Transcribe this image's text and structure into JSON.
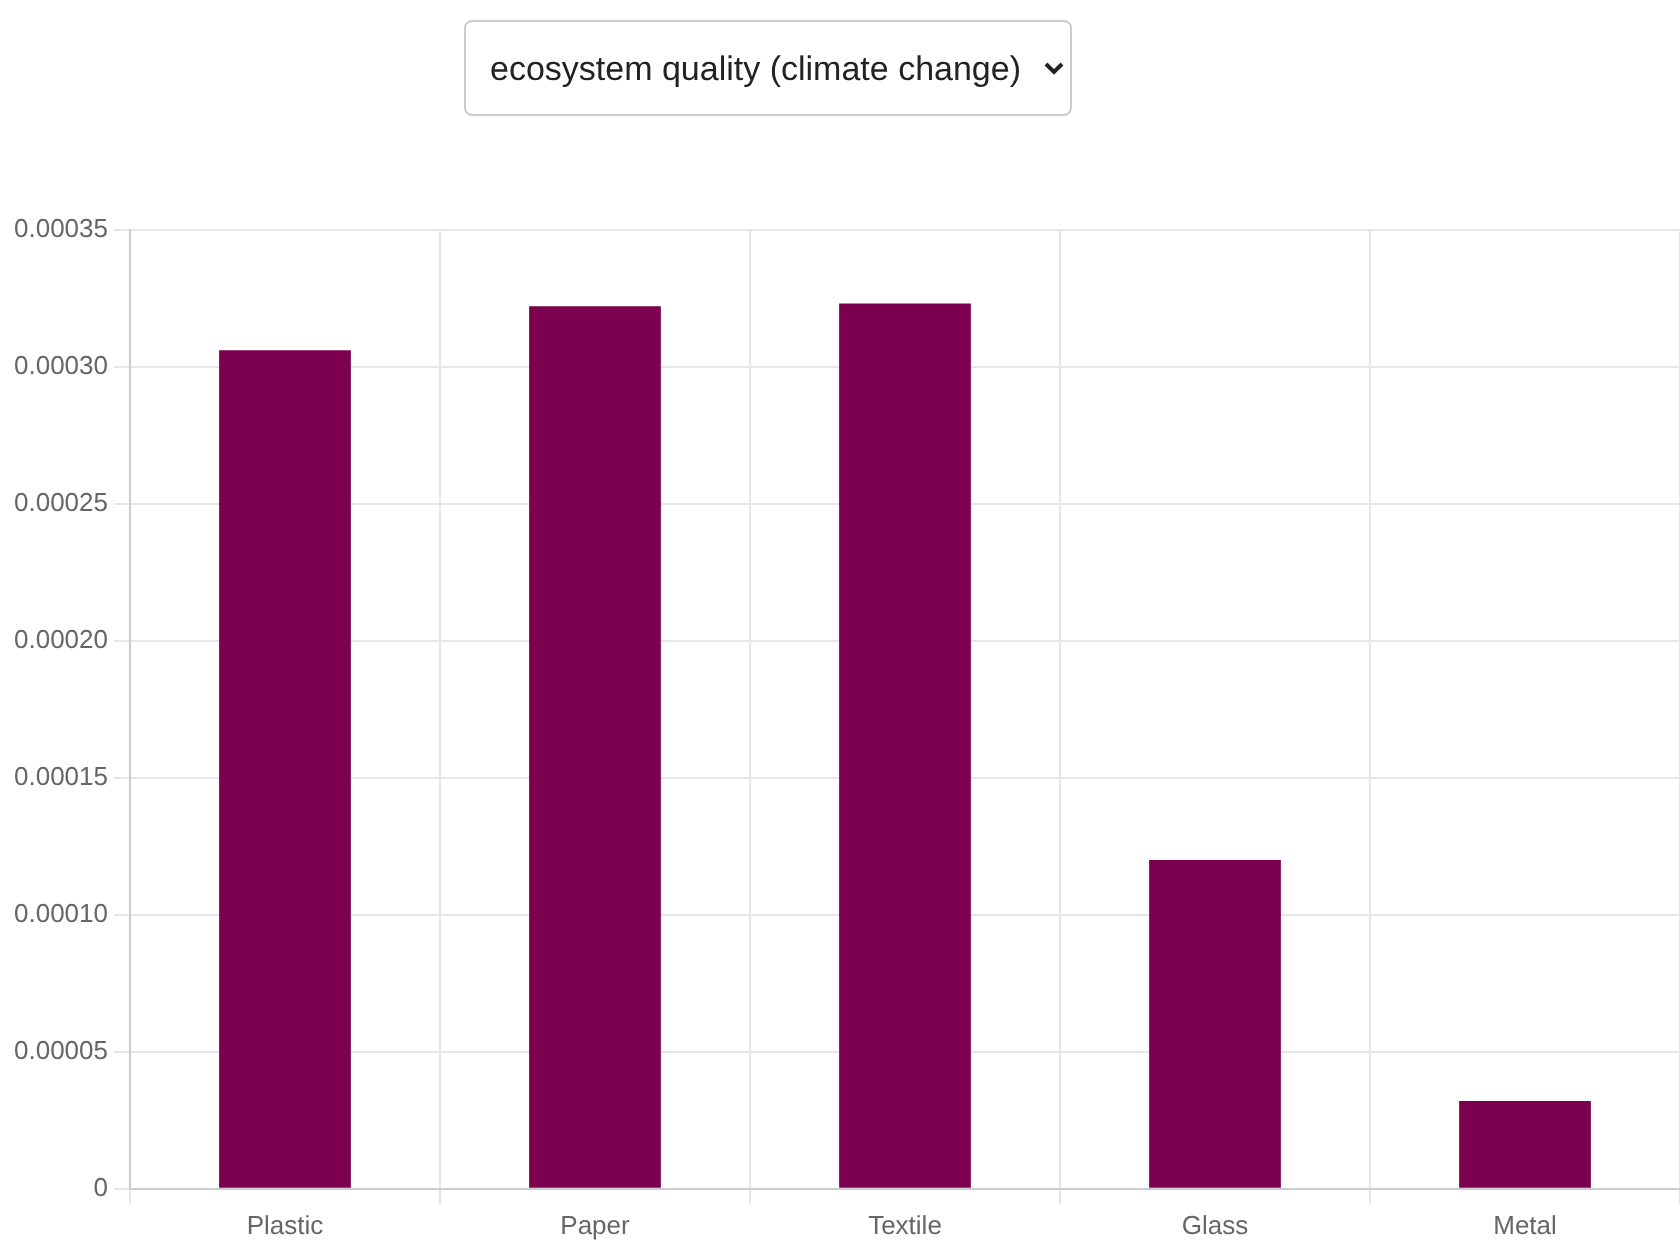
{
  "chart_data": {
    "type": "bar",
    "title": "ecosystem quality (climate change)",
    "categories": [
      "Plastic",
      "Paper",
      "Textile",
      "Glass",
      "Metal"
    ],
    "values": [
      0.000306,
      0.000322,
      0.000323,
      0.00012,
      3.2e-05
    ],
    "color": "#7b0050",
    "ylim": [
      0,
      0.00035
    ],
    "yticks": [
      {
        "value": 0,
        "label": "0"
      },
      {
        "value": 5e-05,
        "label": "0.00005"
      },
      {
        "value": 0.0001,
        "label": "0.00010"
      },
      {
        "value": 0.00015,
        "label": "0.00015"
      },
      {
        "value": 0.0002,
        "label": "0.00020"
      },
      {
        "value": 0.00025,
        "label": "0.00025"
      },
      {
        "value": 0.0003,
        "label": "0.00030"
      },
      {
        "value": 0.00035,
        "label": "0.00035"
      }
    ],
    "grid": true,
    "legend": false
  }
}
